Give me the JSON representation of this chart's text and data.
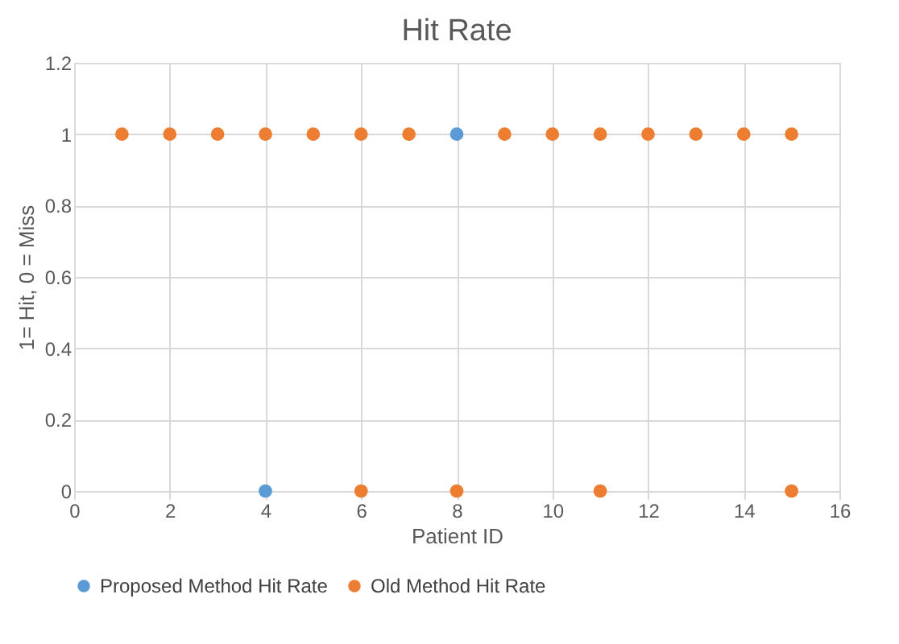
{
  "chart_data": {
    "type": "scatter",
    "title": "Hit Rate",
    "xlabel": "Patient ID",
    "ylabel": "1= Hit, 0 = Miss",
    "xlim": [
      0,
      16
    ],
    "xticks": [
      0,
      2,
      4,
      6,
      8,
      10,
      12,
      14,
      16
    ],
    "ylim": [
      0,
      1.2
    ],
    "yticks": [
      0,
      0.2,
      0.4,
      0.6,
      0.8,
      1,
      1.2
    ],
    "grid": true,
    "legend": "bottom",
    "marker": "circle",
    "series": [
      {
        "name": "Proposed Method Hit Rate",
        "color": "#5b9bd5",
        "x": [
          4,
          8
        ],
        "values": [
          0,
          1
        ]
      },
      {
        "name": "Old Method Hit Rate",
        "color": "#ed7d31",
        "x": [
          1,
          2,
          3,
          4,
          5,
          6,
          7,
          9,
          10,
          11,
          12,
          13,
          14,
          15,
          6,
          8,
          11,
          15
        ],
        "values": [
          1,
          1,
          1,
          1,
          1,
          1,
          1,
          1,
          1,
          1,
          1,
          1,
          1,
          1,
          0,
          0,
          0,
          0
        ]
      }
    ]
  }
}
